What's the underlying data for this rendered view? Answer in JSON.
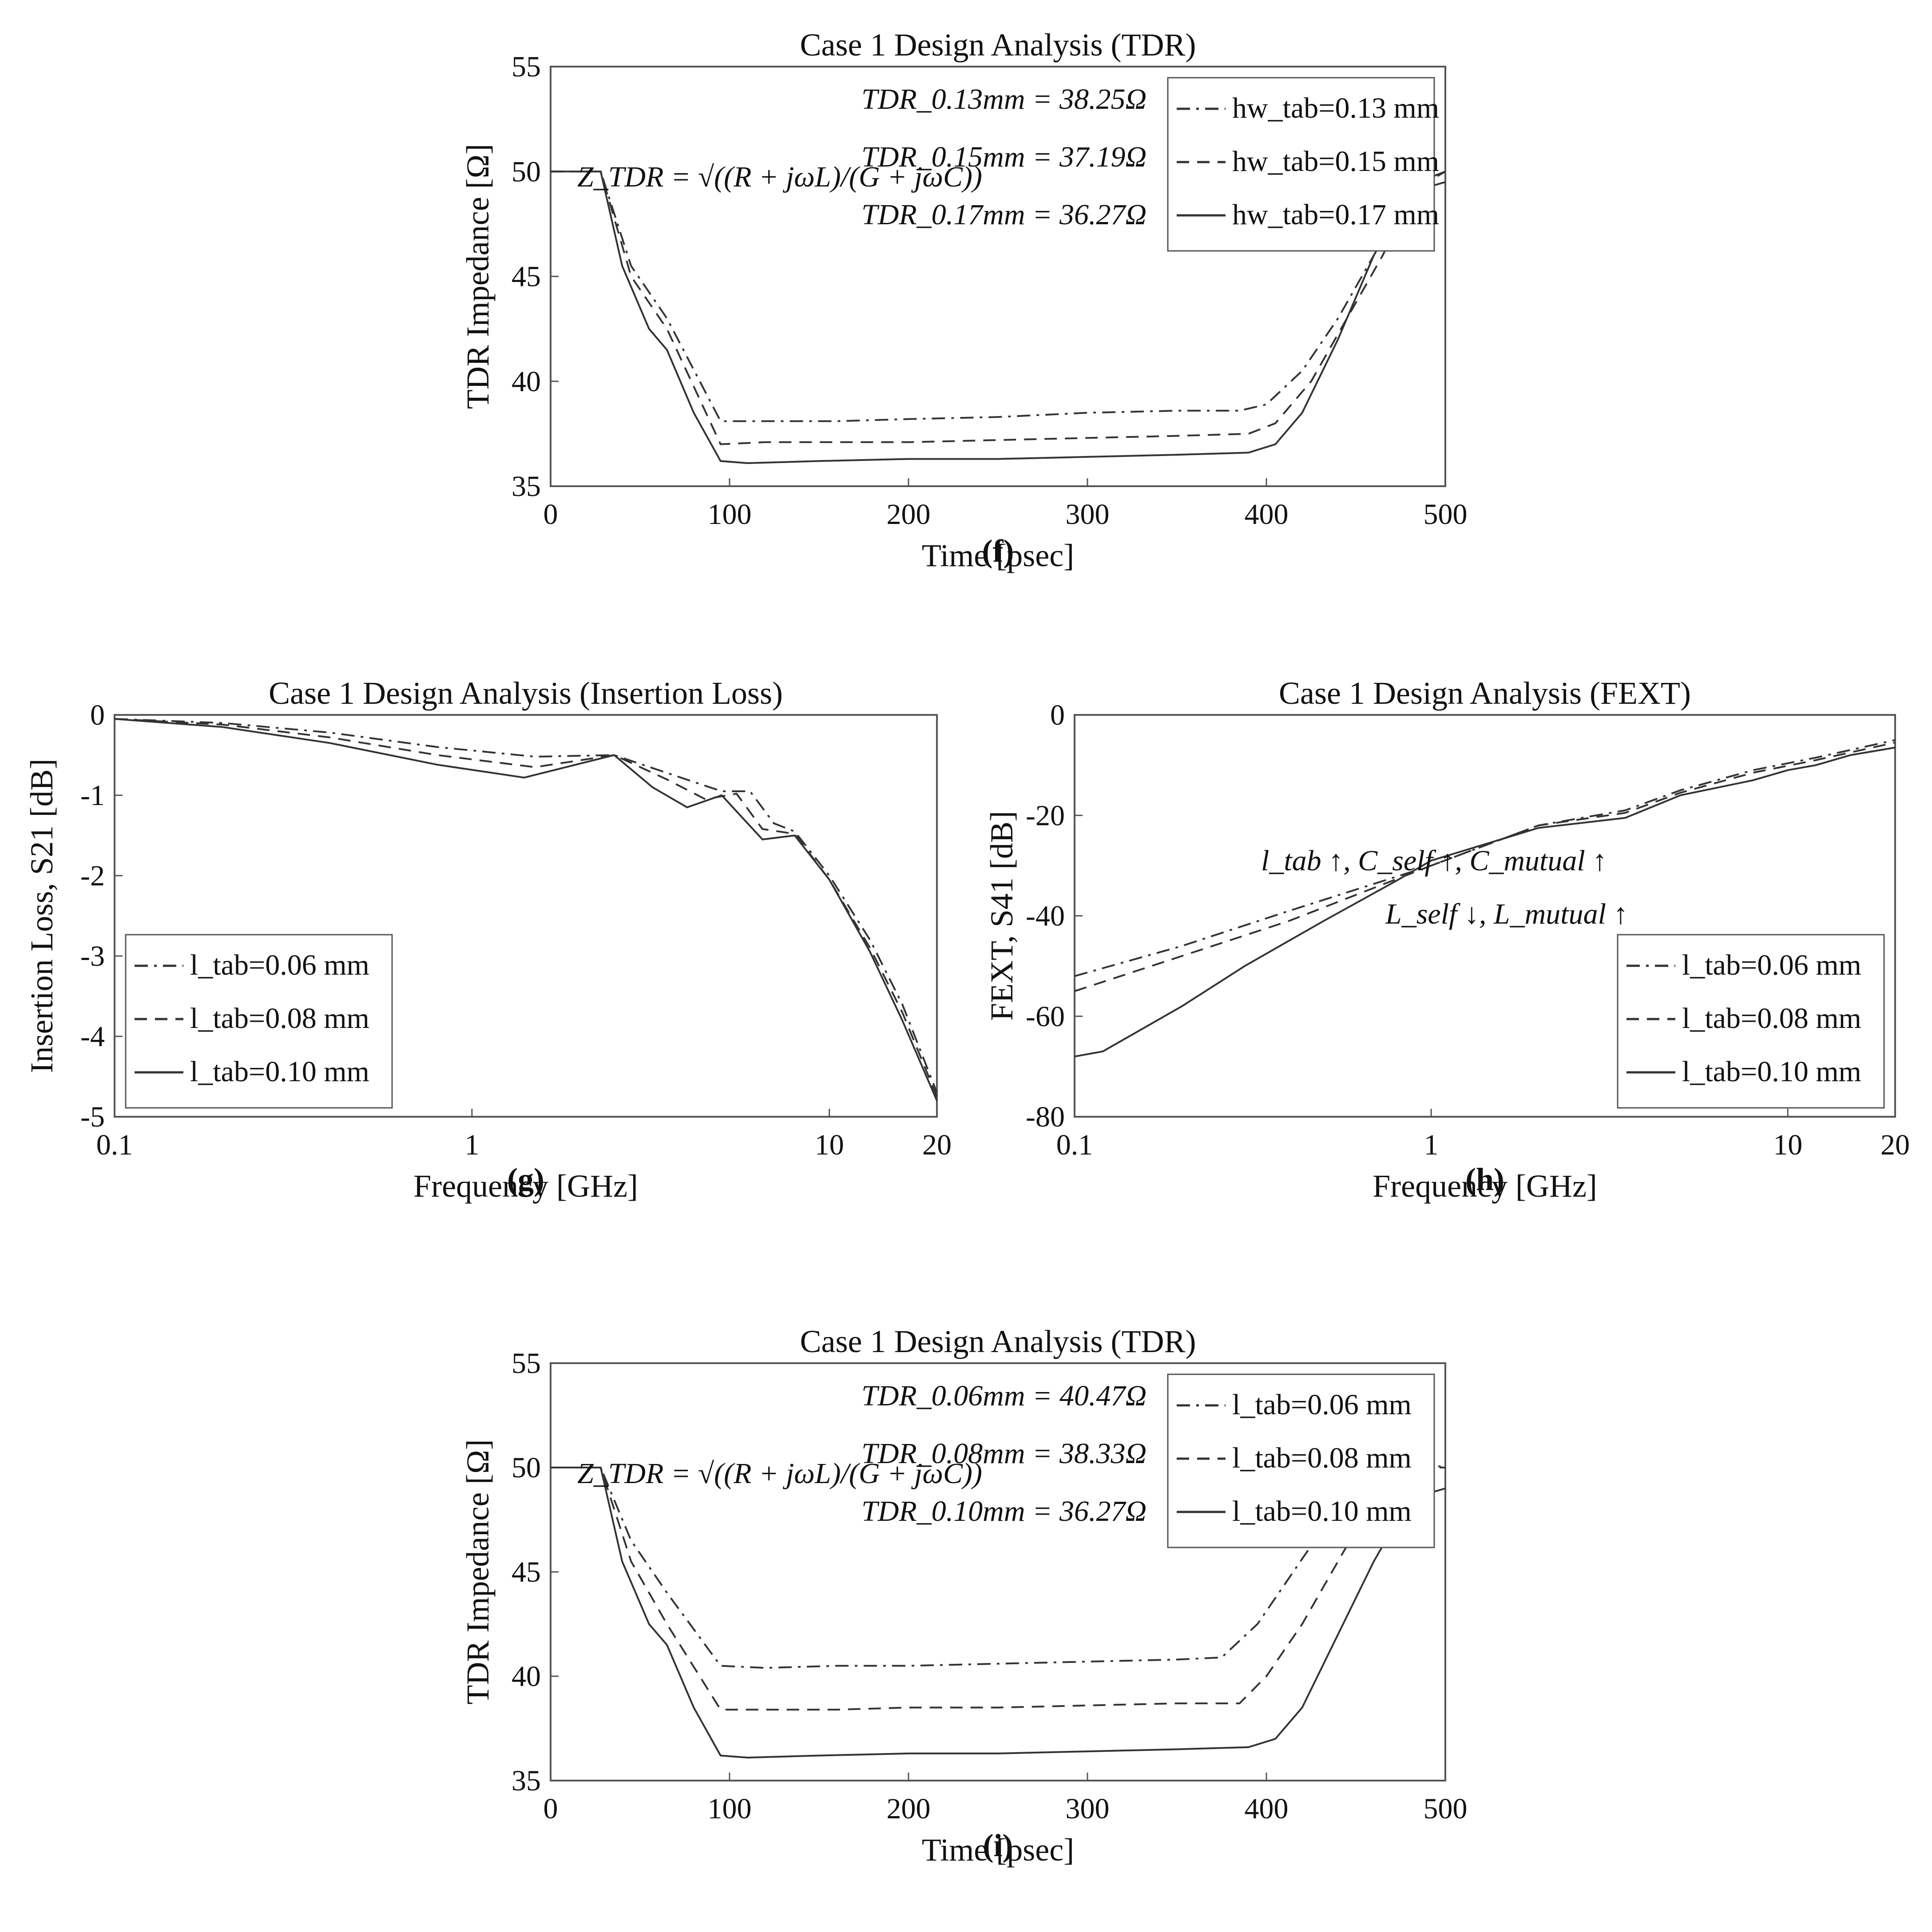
{
  "panels": [
    {
      "label": "(f)",
      "title": "Case 1 Design Analysis (TDR)",
      "xlabel": "Time [psec]",
      "ylabel": "TDR Impedance [Ω]",
      "xscale": "linear",
      "xlim": [
        0,
        500
      ],
      "ylim": [
        35,
        55
      ],
      "xticks": [
        0,
        100,
        200,
        300,
        400,
        500
      ],
      "yticks": [
        35,
        40,
        45,
        50,
        55
      ],
      "legend_position": "top-right",
      "equation": "Z_TDR = √((R + jωL)/(G + jωC))",
      "annotations": [
        "TDR_0.13mm = 38.25Ω",
        "TDR_0.15mm = 37.19Ω",
        "TDR_0.17mm = 36.27Ω"
      ],
      "series": [
        {
          "name": "hw_tab=0.13 mm",
          "dash": "dashdot",
          "x": [
            0,
            28,
            45,
            65,
            95,
            120,
            160,
            200,
            250,
            300,
            350,
            385,
            400,
            420,
            440,
            460,
            480,
            500
          ],
          "y": [
            50,
            50,
            45.5,
            43,
            38.1,
            38.1,
            38.1,
            38.2,
            38.3,
            38.5,
            38.6,
            38.6,
            38.9,
            40.5,
            43,
            46,
            49,
            50
          ]
        },
        {
          "name": "hw_tab=0.15 mm",
          "dash": "dash",
          "x": [
            0,
            28,
            45,
            65,
            95,
            120,
            160,
            200,
            250,
            300,
            350,
            390,
            405,
            425,
            445,
            465,
            485,
            500
          ],
          "y": [
            50,
            50,
            45,
            42.5,
            37,
            37.1,
            37.1,
            37.1,
            37.2,
            37.3,
            37.4,
            37.5,
            38,
            40,
            43,
            46,
            49.5,
            50
          ]
        },
        {
          "name": "hw_tab=0.17 mm",
          "dash": "solid",
          "x": [
            0,
            28,
            40,
            55,
            65,
            80,
            95,
            110,
            150,
            200,
            250,
            300,
            350,
            390,
            405,
            420,
            440,
            460,
            480,
            500
          ],
          "y": [
            50,
            50,
            45.5,
            42.5,
            41.5,
            38.5,
            36.2,
            36.1,
            36.2,
            36.3,
            36.3,
            36.4,
            36.5,
            36.6,
            37,
            38.5,
            42,
            46,
            49,
            49.5
          ]
        }
      ]
    },
    {
      "label": "(g)",
      "title": "Case 1 Design Analysis (Insertion Loss)",
      "xlabel": "Frequency [GHz]",
      "ylabel": "Insertion Loss, S21 [dB]",
      "xscale": "log",
      "xlim": [
        0.1,
        20
      ],
      "ylim": [
        -5,
        0
      ],
      "xticks": [
        0.1,
        1,
        10,
        20
      ],
      "yticks": [
        -5,
        -4,
        -3,
        -2,
        -1,
        0
      ],
      "legend_position": "bottom-left",
      "series": [
        {
          "name": "l_tab=0.06 mm",
          "dash": "dashdot",
          "x": [
            0.1,
            0.2,
            0.4,
            0.8,
            1.5,
            2.5,
            3.5,
            5,
            6,
            7,
            8,
            10,
            13,
            16,
            20
          ],
          "y": [
            -0.05,
            -0.1,
            -0.22,
            -0.4,
            -0.52,
            -0.5,
            -0.72,
            -0.95,
            -0.95,
            -1.35,
            -1.45,
            -2,
            -2.8,
            -3.6,
            -4.7
          ]
        },
        {
          "name": "l_tab=0.08 mm",
          "dash": "dash",
          "x": [
            0.1,
            0.2,
            0.4,
            0.8,
            1.5,
            2.5,
            3.5,
            4.5,
            5.5,
            6.5,
            8,
            10,
            13,
            16,
            20
          ],
          "y": [
            -0.05,
            -0.12,
            -0.28,
            -0.5,
            -0.65,
            -0.5,
            -0.8,
            -1.05,
            -0.98,
            -1.42,
            -1.48,
            -2.05,
            -2.9,
            -3.7,
            -4.75
          ]
        },
        {
          "name": "l_tab=0.10 mm",
          "dash": "solid",
          "x": [
            0.1,
            0.2,
            0.4,
            0.8,
            1.4,
            2.5,
            3.2,
            4,
            5,
            6.5,
            8,
            10,
            13,
            16,
            20
          ],
          "y": [
            -0.05,
            -0.15,
            -0.35,
            -0.62,
            -0.78,
            -0.5,
            -0.9,
            -1.15,
            -1,
            -1.55,
            -1.5,
            -2.05,
            -2.95,
            -3.8,
            -4.8
          ]
        }
      ]
    },
    {
      "label": "(h)",
      "title": "Case 1 Design Analysis (FEXT)",
      "xlabel": "Frequency [GHz]",
      "ylabel": "FEXT, S41 [dB]",
      "xscale": "log",
      "xlim": [
        0.1,
        20
      ],
      "ylim": [
        -80,
        0
      ],
      "xticks": [
        0.1,
        1,
        10,
        20
      ],
      "yticks": [
        -80,
        -60,
        -40,
        -20,
        0
      ],
      "legend_position": "bottom-right",
      "annotations": [
        "l_tab ↑, C_self ↑, C_mutual ↑",
        "L_self ↓, L_mutual ↑"
      ],
      "series": [
        {
          "name": "l_tab=0.06 mm",
          "dash": "dashdot",
          "x": [
            0.1,
            0.2,
            0.4,
            1,
            2,
            3.5,
            5,
            8,
            12,
            20
          ],
          "y": [
            -52,
            -46,
            -39,
            -30,
            -22,
            -19,
            -15,
            -11,
            -8.5,
            -5
          ]
        },
        {
          "name": "l_tab=0.08 mm",
          "dash": "dash",
          "x": [
            0.1,
            0.2,
            0.4,
            1,
            2,
            3.5,
            5,
            8,
            12,
            20
          ],
          "y": [
            -55,
            -48,
            -41,
            -30,
            -22,
            -19.5,
            -15.5,
            -11.5,
            -9,
            -5.5
          ]
        },
        {
          "name": "l_tab=0.10 mm",
          "dash": "solid",
          "x": [
            0.1,
            0.12,
            0.2,
            0.3,
            0.5,
            0.8,
            1,
            2,
            3.5,
            5,
            8,
            10,
            12,
            15,
            20
          ],
          "y": [
            -68,
            -67,
            -58,
            -50,
            -41,
            -33,
            -29,
            -22.5,
            -20.5,
            -16,
            -13,
            -11,
            -10,
            -8,
            -6.5
          ]
        }
      ]
    },
    {
      "label": "(i)",
      "title": "Case 1 Design Analysis (TDR)",
      "xlabel": "Time [psec]",
      "ylabel": "TDR Impedance [Ω]",
      "xscale": "linear",
      "xlim": [
        0,
        500
      ],
      "ylim": [
        35,
        55
      ],
      "xticks": [
        0,
        100,
        200,
        300,
        400,
        500
      ],
      "yticks": [
        35,
        40,
        45,
        50,
        55
      ],
      "legend_position": "top-right",
      "equation": "Z_TDR = √((R + jωL)/(G + jωC))",
      "annotations": [
        "TDR_0.06mm = 40.47Ω",
        "TDR_0.08mm = 38.33Ω",
        "TDR_0.10mm = 36.27Ω"
      ],
      "series": [
        {
          "name": "l_tab=0.06 mm",
          "dash": "dashdot",
          "x": [
            0,
            28,
            45,
            65,
            95,
            120,
            160,
            200,
            250,
            300,
            350,
            375,
            395,
            415,
            435,
            455,
            470,
            500
          ],
          "y": [
            50,
            50,
            46.5,
            44,
            40.5,
            40.4,
            40.5,
            40.5,
            40.6,
            40.7,
            40.8,
            40.9,
            42.5,
            45,
            47.5,
            50,
            50.5,
            50
          ]
        },
        {
          "name": "l_tab=0.08 mm",
          "dash": "dash",
          "x": [
            0,
            28,
            45,
            65,
            95,
            120,
            160,
            200,
            250,
            300,
            350,
            385,
            400,
            420,
            440,
            460,
            480,
            500
          ],
          "y": [
            50,
            50,
            45.5,
            42.5,
            38.4,
            38.4,
            38.4,
            38.5,
            38.5,
            38.6,
            38.7,
            38.7,
            40,
            42.5,
            45.5,
            48.5,
            50,
            50
          ]
        },
        {
          "name": "l_tab=0.10 mm",
          "dash": "solid",
          "x": [
            0,
            28,
            40,
            55,
            65,
            80,
            95,
            110,
            150,
            200,
            250,
            300,
            350,
            390,
            405,
            420,
            440,
            460,
            480,
            500
          ],
          "y": [
            50,
            50,
            45.5,
            42.5,
            41.5,
            38.5,
            36.2,
            36.1,
            36.2,
            36.3,
            36.3,
            36.4,
            36.5,
            36.6,
            37,
            38.5,
            42,
            45.5,
            48.5,
            49
          ]
        }
      ]
    }
  ],
  "chart_data": [
    {
      "type": "line",
      "title": "Case 1 Design Analysis (TDR)",
      "xlabel": "Time [psec]",
      "ylabel": "TDR Impedance [Ω]",
      "xlim": [
        0,
        500
      ],
      "ylim": [
        35,
        55
      ]
    },
    {
      "type": "line",
      "title": "Case 1 Design Analysis (Insertion Loss)",
      "xlabel": "Frequency [GHz]",
      "ylabel": "Insertion Loss, S21 [dB]",
      "xlim": [
        0.1,
        20
      ],
      "ylim": [
        -5,
        0
      ],
      "xscale": "log"
    },
    {
      "type": "line",
      "title": "Case 1 Design Analysis (FEXT)",
      "xlabel": "Frequency [GHz]",
      "ylabel": "FEXT, S41 [dB]",
      "xlim": [
        0.1,
        20
      ],
      "ylim": [
        -80,
        0
      ],
      "xscale": "log"
    },
    {
      "type": "line",
      "title": "Case 1 Design Analysis (TDR)",
      "xlabel": "Time [psec]",
      "ylabel": "TDR Impedance [Ω]",
      "xlim": [
        0,
        500
      ],
      "ylim": [
        35,
        55
      ]
    }
  ]
}
